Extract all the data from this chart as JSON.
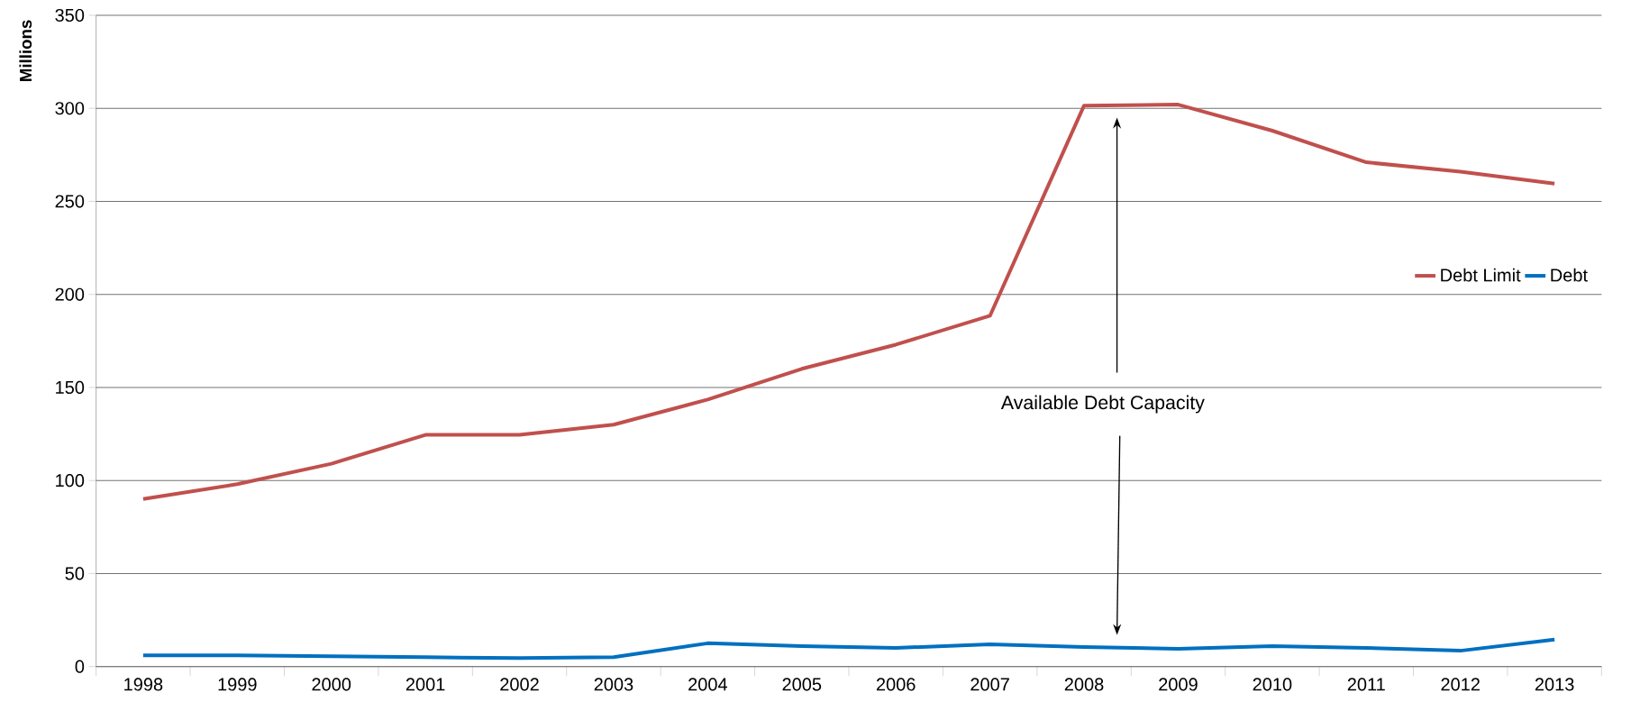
{
  "chart_data": {
    "type": "line",
    "ylabel": "Millions",
    "categories": [
      "1998",
      "1999",
      "2000",
      "2001",
      "2002",
      "2003",
      "2004",
      "2005",
      "2006",
      "2007",
      "2008",
      "2009",
      "2010",
      "2011",
      "2012",
      "2013"
    ],
    "series": [
      {
        "name": "Debt Limit",
        "color": "#c0504d",
        "values": [
          90,
          98,
          109,
          124.5,
          124.5,
          130,
          143.5,
          160,
          173,
          188.5,
          301.5,
          302,
          288,
          271,
          266,
          259.5
        ]
      },
      {
        "name": "Debt",
        "color": "#0070c0",
        "values": [
          6,
          6,
          5.5,
          5,
          4.5,
          5,
          12.5,
          11,
          10,
          12,
          10.5,
          9.5,
          11,
          10,
          8.5,
          14.5
        ]
      }
    ],
    "ylim": [
      0,
      350
    ],
    "yticks": [
      0,
      50,
      100,
      150,
      200,
      250,
      300,
      350
    ],
    "grid": "y",
    "legend": "right",
    "marker": "none",
    "line_style": "solid",
    "annotations": [
      "Available Debt Capacity"
    ]
  }
}
